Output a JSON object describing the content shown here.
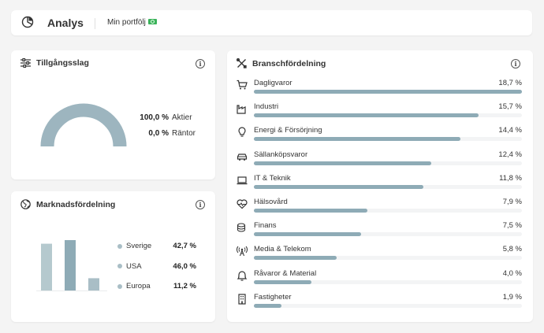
{
  "header": {
    "title": "Analys",
    "portfolio_label": "Min portfölj"
  },
  "assets": {
    "title": "Tillgångsslag",
    "items": [
      {
        "value": "100,0 %",
        "label": "Aktier",
        "fraction": 1.0
      },
      {
        "value": "0,0 %",
        "label": "Räntor",
        "fraction": 0.0
      }
    ]
  },
  "market": {
    "title": "Marknadsfördelning",
    "items": [
      {
        "label": "Sverige",
        "value": "42,7 %",
        "percent": 42.7
      },
      {
        "label": "USA",
        "value": "46,0 %",
        "percent": 46.0
      },
      {
        "label": "Europa",
        "value": "11,2 %",
        "percent": 11.2
      }
    ],
    "colors": [
      "#b5c9ce",
      "#8eabb6",
      "#a9bec6"
    ]
  },
  "sector": {
    "title": "Branschfördelning",
    "items": [
      {
        "label": "Dagligvaror",
        "value": "18,7 %",
        "percent": 18.7,
        "icon": "cart-icon"
      },
      {
        "label": "Industri",
        "value": "15,7 %",
        "percent": 15.7,
        "icon": "factory-icon"
      },
      {
        "label": "Energi & Försörjning",
        "value": "14,4 %",
        "percent": 14.4,
        "icon": "lightbulb-icon"
      },
      {
        "label": "Sällanköpsvaror",
        "value": "12,4 %",
        "percent": 12.4,
        "icon": "car-icon"
      },
      {
        "label": "IT & Teknik",
        "value": "11,8 %",
        "percent": 11.8,
        "icon": "laptop-icon"
      },
      {
        "label": "Hälsovård",
        "value": "7,9 %",
        "percent": 7.9,
        "icon": "heartbeat-icon"
      },
      {
        "label": "Finans",
        "value": "7,5 %",
        "percent": 7.5,
        "icon": "coins-icon"
      },
      {
        "label": "Media & Telekom",
        "value": "5,8 %",
        "percent": 5.8,
        "icon": "antenna-icon"
      },
      {
        "label": "Råvaror & Material",
        "value": "4,0 %",
        "percent": 4.0,
        "icon": "bell-icon"
      },
      {
        "label": "Fastigheter",
        "value": "1,9 %",
        "percent": 1.9,
        "icon": "building-icon"
      }
    ],
    "bar_color": "#8eabb6"
  },
  "colors": {
    "accent": "#8eabb6",
    "gauge": "#9db5bf",
    "gauge_track": "#eef1f3"
  }
}
